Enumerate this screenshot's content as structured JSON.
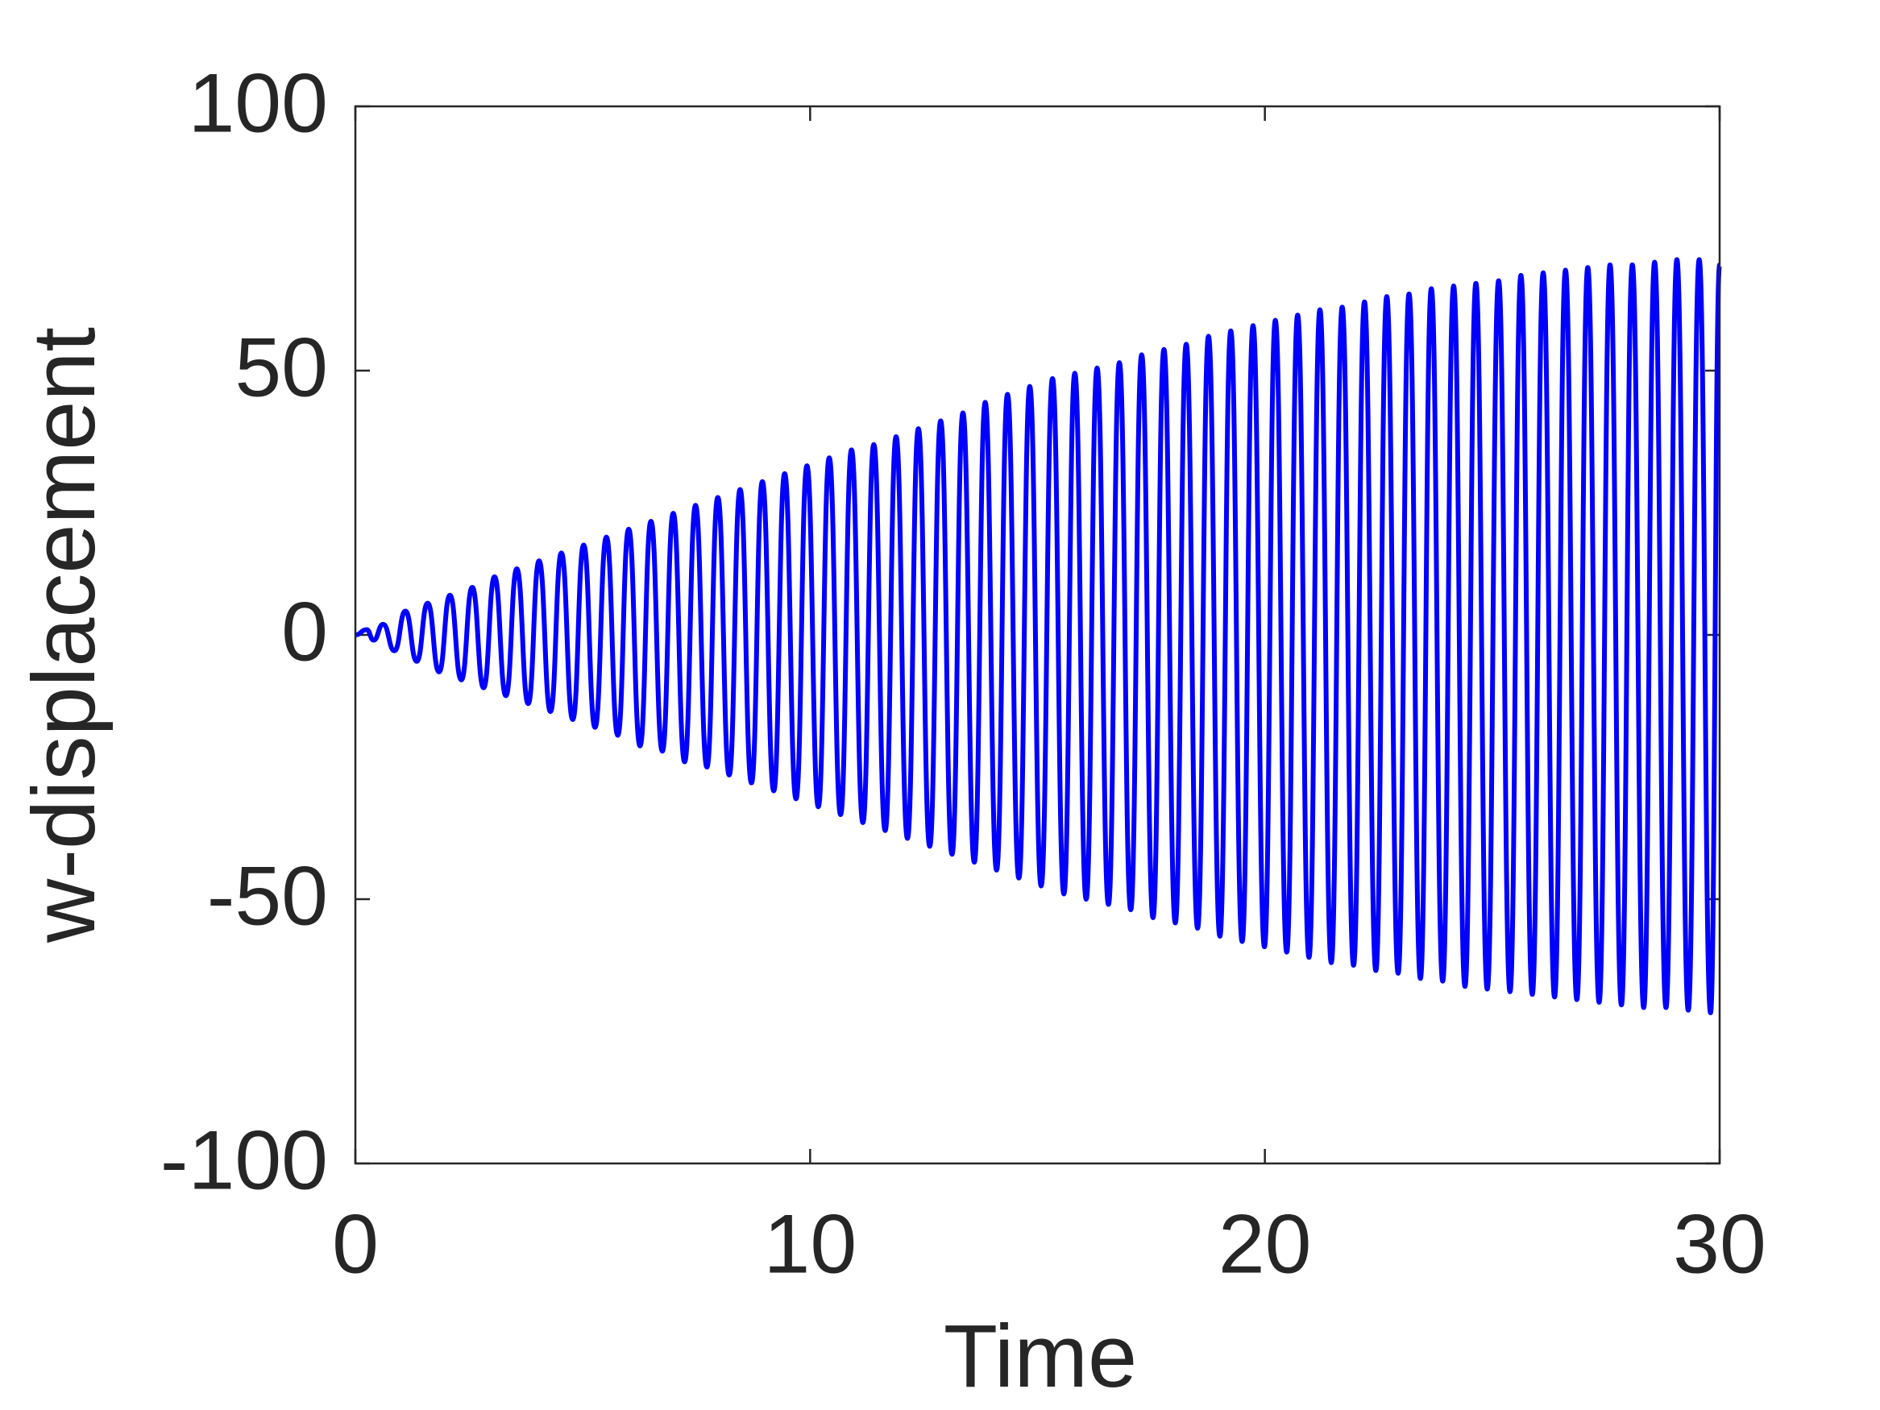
{
  "chart_data": {
    "type": "line",
    "x_label": "Time",
    "y_label": "w-displacement",
    "xlim": [
      0,
      30
    ],
    "ylim": [
      -100,
      100
    ],
    "xticks": [
      0,
      10,
      20,
      30
    ],
    "yticks": [
      -100,
      -50,
      0,
      50,
      100
    ],
    "box": true,
    "series": [
      {
        "color": "#0000ff",
        "x": [
          0,
          0.25,
          0.4,
          0.61,
          0.86,
          1.1,
          1.35,
          1.59,
          1.84,
          2.08,
          2.33,
          2.57,
          2.82,
          3.06,
          3.31,
          3.55,
          3.8,
          4.04,
          4.29,
          4.53,
          4.78,
          5.02,
          5.27,
          5.52,
          5.77,
          6.01,
          6.26,
          6.5,
          6.75,
          6.99,
          7.24,
          7.48,
          7.73,
          7.97,
          8.22,
          8.46,
          8.71,
          8.95,
          9.2,
          9.44,
          9.69,
          9.93,
          10.18,
          10.42,
          10.67,
          10.91,
          11.16,
          11.4,
          11.65,
          11.89,
          12.14,
          12.38,
          12.63,
          12.87,
          13.12,
          13.36,
          13.61,
          13.85,
          14.1,
          14.34,
          14.59,
          14.83,
          15.08,
          15.33,
          15.58,
          15.82,
          16.07,
          16.31,
          16.56,
          16.8,
          17.05,
          17.29,
          17.54,
          17.78,
          18.03,
          18.27,
          18.52,
          18.76,
          19.01,
          19.25,
          19.5,
          19.74,
          19.99,
          20.23,
          20.48,
          20.72,
          20.97,
          21.21,
          21.46,
          21.7,
          21.95,
          22.19,
          22.44,
          22.68,
          22.93,
          23.17,
          23.42,
          23.66,
          23.91,
          24.15,
          24.4,
          24.64,
          24.89,
          25.14,
          25.39,
          25.63,
          25.88,
          26.12,
          26.37,
          26.61,
          26.86,
          27.1,
          27.35,
          27.59,
          27.84,
          28.08,
          28.33,
          28.57,
          28.82,
          29.06,
          29.31,
          29.55,
          29.8,
          30
        ],
        "values": [
          0,
          1,
          -1,
          2,
          -3,
          4.5,
          -5,
          6,
          -7,
          7.5,
          -8.5,
          9,
          -10,
          11,
          -11.5,
          12.5,
          -13,
          14,
          -14.5,
          15.5,
          -16,
          17,
          -17.5,
          18.5,
          -19,
          20,
          -21,
          21.5,
          -22,
          23,
          -24,
          24.5,
          -25,
          26,
          -26.5,
          27.5,
          -28,
          29,
          -29.5,
          30.5,
          -31,
          32,
          -32.5,
          33.5,
          -34,
          35,
          -35.5,
          36,
          -37,
          37.5,
          -38.5,
          39,
          -40,
          40.5,
          -41.5,
          42,
          -43,
          44,
          -44.5,
          45.5,
          -46,
          47,
          -47.5,
          48.5,
          -49,
          49.5,
          -50,
          50.5,
          -51,
          51.5,
          -52,
          53,
          -53.5,
          54,
          -54.5,
          55,
          -55.5,
          56.5,
          -57,
          57.5,
          -58,
          58.5,
          -59,
          59.5,
          -60,
          60.5,
          -61,
          61.5,
          -62,
          62,
          -62.5,
          63,
          -63.5,
          64,
          -64,
          64.5,
          -65,
          65.5,
          -65.5,
          66,
          -66.5,
          66.5,
          -67,
          67,
          -67.5,
          68,
          -68,
          68.5,
          -68.5,
          69,
          -69,
          69.5,
          -69.5,
          70,
          -70,
          70,
          -70.5,
          70.5,
          -70.5,
          71,
          -71,
          71,
          -71.5,
          70
        ]
      }
    ]
  }
}
